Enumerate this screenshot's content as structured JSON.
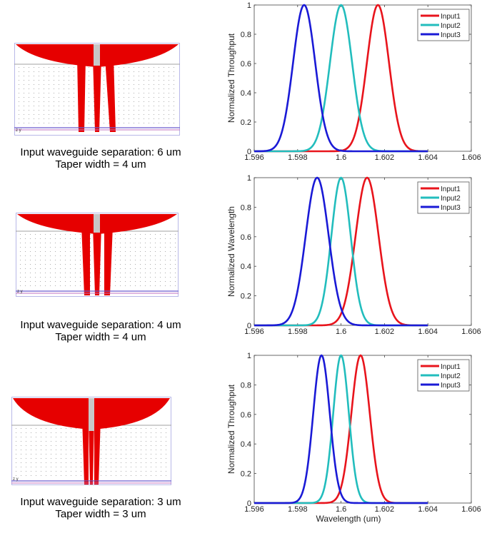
{
  "devices": [
    {
      "caption_line1": "Input waveguide separation: 6 um",
      "caption_line2": "Taper width = 4 um"
    },
    {
      "caption_line1": "Input waveguide separation: 4 um",
      "caption_line2": "Taper width = 4 um"
    },
    {
      "caption_line1": "Input waveguide separation: 3 um",
      "caption_line2": "Taper width =  3 um"
    }
  ],
  "colors": {
    "device_fill": "#e60000",
    "device_core": "#c8c8c8",
    "axis_line": "#6a5acd"
  },
  "chart_data": [
    {
      "type": "line",
      "ylabel": "Normalized Throughput",
      "xlabel": "",
      "xlim": [
        1.596,
        1.606
      ],
      "ylim": [
        0,
        1
      ],
      "x_ticks": [
        "1.596",
        "1.598",
        "1.6",
        "1.602",
        "1.604",
        "1.606"
      ],
      "y_ticks": [
        "0",
        "0.2",
        "0.4",
        "0.6",
        "0.8",
        "1"
      ],
      "legend_position": "top-right",
      "series": [
        {
          "name": "Input1",
          "color": "#e8141c",
          "center": 1.6017,
          "fwhm": 0.0012,
          "x_start": 1.596,
          "x_end": 1.604
        },
        {
          "name": "Input2",
          "color": "#22bdbd",
          "center": 1.6,
          "fwhm": 0.0012,
          "x_start": 1.596,
          "x_end": 1.604
        },
        {
          "name": "Input3",
          "color": "#1a1ad6",
          "center": 1.5983,
          "fwhm": 0.0012,
          "x_start": 1.596,
          "x_end": 1.604
        }
      ]
    },
    {
      "type": "line",
      "ylabel": "Normalized Wavelength",
      "xlabel": "",
      "xlim": [
        1.596,
        1.606
      ],
      "ylim": [
        0,
        1
      ],
      "x_ticks": [
        "1.596",
        "1.598",
        "1.6",
        "1.602",
        "1.604",
        "1.606"
      ],
      "y_ticks": [
        "0",
        "0.2",
        "0.4",
        "0.6",
        "0.8",
        "1"
      ],
      "legend_position": "top-right",
      "series": [
        {
          "name": "Input1",
          "color": "#e8141c",
          "center": 1.6012,
          "fwhm": 0.00125,
          "x_start": 1.596,
          "x_end": 1.604
        },
        {
          "name": "Input2",
          "color": "#22bdbd",
          "center": 1.6,
          "fwhm": 0.00105,
          "x_start": 1.596,
          "x_end": 1.604
        },
        {
          "name": "Input3",
          "color": "#1a1ad6",
          "center": 1.5989,
          "fwhm": 0.00125,
          "x_start": 1.596,
          "x_end": 1.604
        }
      ]
    },
    {
      "type": "line",
      "ylabel": "Normalized Throughput",
      "xlabel": "Wavelength (um)",
      "xlim": [
        1.596,
        1.606
      ],
      "ylim": [
        0,
        1
      ],
      "x_ticks": [
        "1.596",
        "1.598",
        "1.6",
        "1.602",
        "1.604",
        "1.606"
      ],
      "y_ticks": [
        "0",
        "0.2",
        "0.4",
        "0.6",
        "0.8",
        "1"
      ],
      "legend_position": "top-right",
      "series": [
        {
          "name": "Input1",
          "color": "#e8141c",
          "center": 1.6009,
          "fwhm": 0.001,
          "x_start": 1.596,
          "x_end": 1.604
        },
        {
          "name": "Input2",
          "color": "#22bdbd",
          "center": 1.6,
          "fwhm": 0.00085,
          "x_start": 1.596,
          "x_end": 1.604
        },
        {
          "name": "Input3",
          "color": "#1a1ad6",
          "center": 1.5991,
          "fwhm": 0.0009,
          "x_start": 1.596,
          "x_end": 1.604
        }
      ]
    }
  ]
}
